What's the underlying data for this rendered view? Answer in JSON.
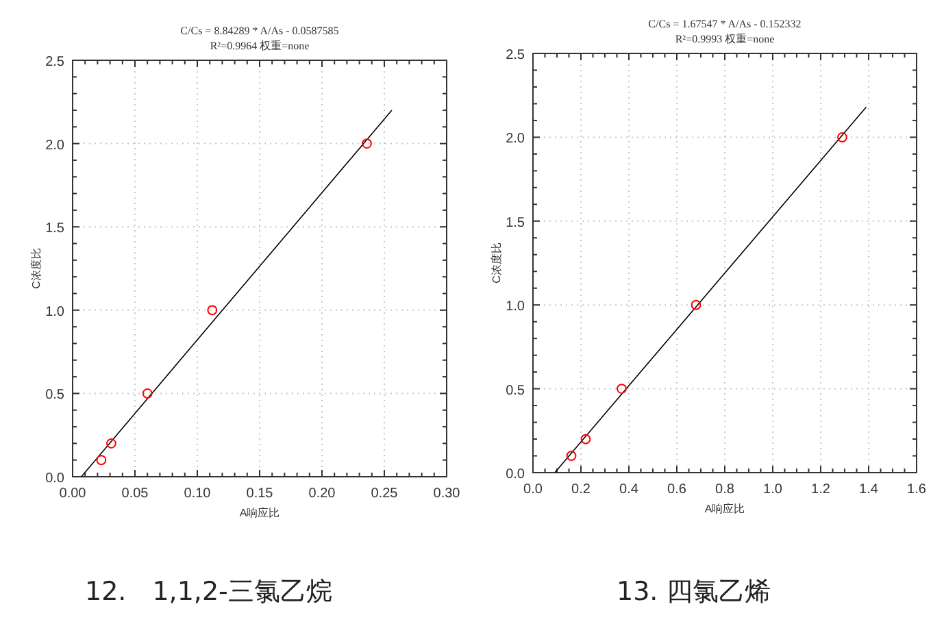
{
  "chart_data": [
    {
      "type": "scatter",
      "title": "C/Cs = 8.84289 * A/As - 0.0587585",
      "subtitle": "R²=0.9964 权重=none",
      "xlabel": "A响应比",
      "ylabel": "C浓度比",
      "annotations": [
        "12.　1,1,2-三氯乙烷"
      ],
      "xlim": [
        0,
        0.3
      ],
      "xticks": [
        {
          "value": 0,
          "label": "0.00"
        },
        {
          "value": 0.05,
          "label": "0.05"
        },
        {
          "value": 0.1,
          "label": "0.10"
        },
        {
          "value": 0.15,
          "label": "0.15"
        },
        {
          "value": 0.2,
          "label": "0.20"
        },
        {
          "value": 0.25,
          "label": "0.25"
        },
        {
          "value": 0.3,
          "label": "0.30"
        }
      ],
      "ylim": [
        0,
        2.5
      ],
      "yticks": [
        {
          "value": 0,
          "label": "0.0"
        },
        {
          "value": 0.5,
          "label": "0.5"
        },
        {
          "value": 1,
          "label": "1.0"
        },
        {
          "value": 1.5,
          "label": "1.5"
        },
        {
          "value": 2,
          "label": "2.0"
        },
        {
          "value": 2.5,
          "label": "2.5"
        }
      ],
      "grid": true,
      "series": [
        {
          "type": "line",
          "color": "#000000",
          "marker": "none",
          "x": [
            0.007,
            0.256
          ],
          "values": [
            0,
            2.2
          ]
        },
        {
          "type": "scatter",
          "color": "#ff0000",
          "marker": "circle",
          "x": [
            0.023,
            0.031,
            0.06,
            0.112,
            0.236
          ],
          "values": [
            0.1,
            0.2,
            0.5,
            1.0,
            2.0
          ]
        }
      ]
    },
    {
      "type": "scatter",
      "title": "C/Cs = 1.67547 * A/As - 0.152332",
      "subtitle": "R²=0.9993 权重=none",
      "xlabel": "A响应比",
      "ylabel": "C浓度比",
      "annotations": [
        "13. 四氯乙烯"
      ],
      "xlim": [
        0,
        1.6
      ],
      "xticks": [
        {
          "value": 0,
          "label": "0.0"
        },
        {
          "value": 0.2,
          "label": "0.2"
        },
        {
          "value": 0.4,
          "label": "0.4"
        },
        {
          "value": 0.6,
          "label": "0.6"
        },
        {
          "value": 0.8,
          "label": "0.8"
        },
        {
          "value": 1,
          "label": "1.0"
        },
        {
          "value": 1.2,
          "label": "1.2"
        },
        {
          "value": 1.4,
          "label": "1.4"
        },
        {
          "value": 1.6,
          "label": "1.6"
        }
      ],
      "ylim": [
        0,
        2.5
      ],
      "yticks": [
        {
          "value": 0,
          "label": "0.0"
        },
        {
          "value": 0.5,
          "label": "0.5"
        },
        {
          "value": 1,
          "label": "1.0"
        },
        {
          "value": 1.5,
          "label": "1.5"
        },
        {
          "value": 2,
          "label": "2.0"
        },
        {
          "value": 2.5,
          "label": "2.5"
        }
      ],
      "grid": true,
      "series": [
        {
          "type": "line",
          "color": "#000000",
          "marker": "none",
          "x": [
            0.091,
            1.39
          ],
          "values": [
            0,
            2.18
          ]
        },
        {
          "type": "scatter",
          "color": "#ff0000",
          "marker": "circle",
          "x": [
            0.16,
            0.22,
            0.37,
            0.68,
            1.29
          ],
          "values": [
            0.1,
            0.2,
            0.5,
            1.0,
            2.0
          ]
        }
      ]
    }
  ]
}
